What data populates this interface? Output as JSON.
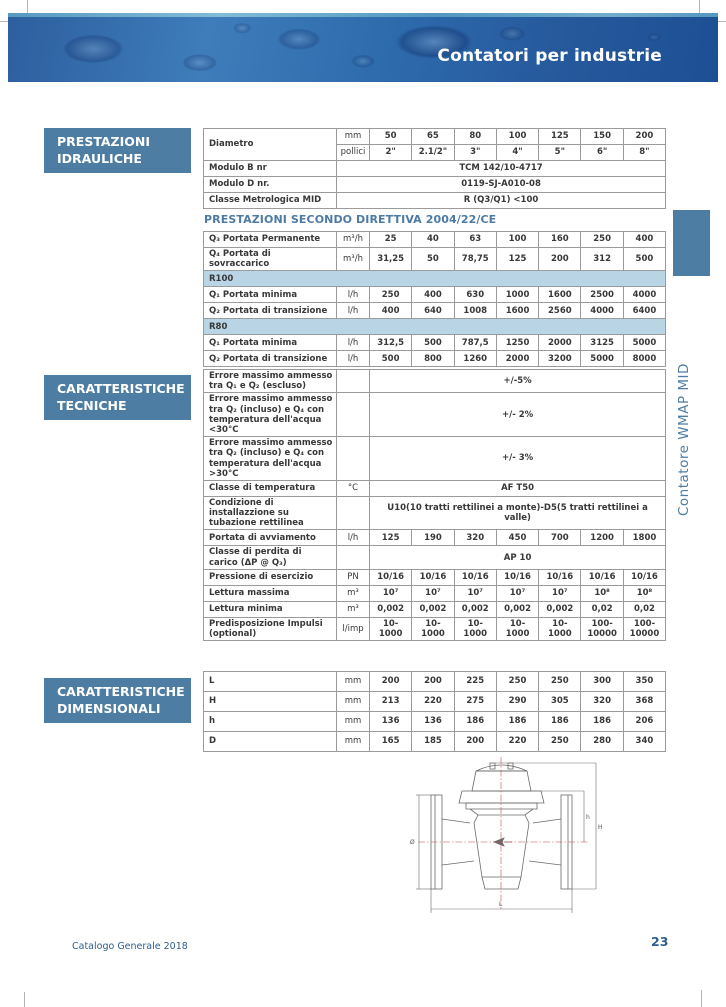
{
  "header": {
    "title": "Contatori per industrie"
  },
  "side_tab": {
    "label": "Contatore WMAP MID"
  },
  "colors": {
    "accent_blue": "#4e7da4",
    "row_highlight": "#b9d5e5",
    "header_band_blue": "#2e6cae",
    "footer_text_blue": "#2e5f8c"
  },
  "section_labels": {
    "hydraulic": "PRESTAZIONI IDRAULICHE",
    "technical": "CARATTERISTICHE TECNICHE",
    "dimensional": "CARATTERISTICHE DIMENSIONALI"
  },
  "directive_heading": "PRESTAZIONI SECONDO DIRETTIVA 2004/22/CE",
  "table1": {
    "rows": [
      {
        "type": "diametro",
        "label": "Diametro",
        "sub": [
          {
            "unit": "mm",
            "values": [
              "50",
              "65",
              "80",
              "100",
              "125",
              "150",
              "200"
            ]
          },
          {
            "unit": "pollici",
            "values": [
              "2\"",
              "2.1/2\"",
              "3\"",
              "4\"",
              "5\"",
              "6\"",
              "8\""
            ]
          }
        ]
      },
      {
        "type": "span8",
        "label": "Modulo B nr",
        "value": "TCM 142/10-4717"
      },
      {
        "type": "span8",
        "label": "Modulo D nr.",
        "value": "0119-SJ-A010-08"
      },
      {
        "type": "span8",
        "label": "Classe Metrologica  MID",
        "value": "R (Q3/Q1) <100"
      }
    ]
  },
  "table2": {
    "rows": [
      {
        "type": "values",
        "label": "Q₃ Portata Permanente",
        "unit": "m³/h",
        "values": [
          "25",
          "40",
          "63",
          "100",
          "160",
          "250",
          "400"
        ]
      },
      {
        "type": "values",
        "label": "Q₄ Portata di sovraccarico",
        "unit": "m³/h",
        "values": [
          "31,25",
          "50",
          "78,75",
          "125",
          "200",
          "312",
          "500"
        ]
      },
      {
        "type": "highlight",
        "label": "R100"
      },
      {
        "type": "values",
        "label": "Q₁  Portata minima",
        "unit": "l/h",
        "values": [
          "250",
          "400",
          "630",
          "1000",
          "1600",
          "2500",
          "4000"
        ]
      },
      {
        "type": "values",
        "label": "Q₂  Portata di transizione",
        "unit": "l/h",
        "values": [
          "400",
          "640",
          "1008",
          "1600",
          "2560",
          "4000",
          "6400"
        ]
      },
      {
        "type": "highlight",
        "label": "R80"
      },
      {
        "type": "values",
        "label": "Q₁  Portata minima",
        "unit": "l/h",
        "values": [
          "312,5",
          "500",
          "787,5",
          "1250",
          "2000",
          "3125",
          "5000"
        ]
      },
      {
        "type": "values",
        "label": "Q₂  Portata di transizione",
        "unit": "l/h",
        "values": [
          "500",
          "800",
          "1260",
          "2000",
          "3200",
          "5000",
          "8000"
        ]
      }
    ]
  },
  "table3": {
    "rows": [
      {
        "type": "span7",
        "label": "Errore massimo ammesso tra Q₁ e Q₂ (escluso)",
        "unit": "",
        "value": "+/-5%"
      },
      {
        "type": "span7",
        "label": "Errore massimo ammesso tra Q₂ (incluso) e Q₄ con temperatura dell'acqua <30°C",
        "unit": "",
        "value": "+/- 2%"
      },
      {
        "type": "span7",
        "label": "Errore massimo ammesso tra Q₂ (incluso) e Q₄ con temperatura dell'acqua >30°C",
        "unit": "",
        "value": "+/- 3%"
      },
      {
        "type": "span7",
        "label": "Classe di temperatura",
        "unit": "°C",
        "value": "AF T50"
      },
      {
        "type": "span7",
        "label": "Condizione di installazzione su tubazione rettilinea",
        "unit": "",
        "value": "U10(10 tratti rettilinei a monte)-D5(5 tratti rettilinei a valle)"
      },
      {
        "type": "values",
        "label": "Portata di avviamento",
        "unit": "l/h",
        "values": [
          "125",
          "190",
          "320",
          "450",
          "700",
          "1200",
          "1800"
        ]
      },
      {
        "type": "span7",
        "label": "Classe di perdita di carico (ΔP @ Q₃)",
        "unit": "",
        "value": "AP 10"
      },
      {
        "type": "values",
        "label": "Pressione di esercizio",
        "unit": "PN",
        "values": [
          "10/16",
          "10/16",
          "10/16",
          "10/16",
          "10/16",
          "10/16",
          "10/16"
        ]
      },
      {
        "type": "values",
        "label": "Lettura massima",
        "unit": "m³",
        "values": [
          "10⁷",
          "10⁷",
          "10⁷",
          "10⁷",
          "10⁷",
          "10⁸",
          "10⁸"
        ]
      },
      {
        "type": "values",
        "label": "Lettura minima",
        "unit": "m³",
        "values": [
          "0,002",
          "0,002",
          "0,002",
          "0,002",
          "0,002",
          "0,02",
          "0,02"
        ]
      },
      {
        "type": "values",
        "label": "Predisposizione Impulsi (optional)",
        "unit": "l/imp",
        "values": [
          "10-1000",
          "10-1000",
          "10-1000",
          "10-1000",
          "10-1000",
          "100-10000",
          "100-10000"
        ]
      }
    ]
  },
  "table4": {
    "rows": [
      {
        "type": "values",
        "label": "L",
        "unit": "mm",
        "values": [
          "200",
          "200",
          "225",
          "250",
          "250",
          "300",
          "350"
        ]
      },
      {
        "type": "values",
        "label": "H",
        "unit": "mm",
        "values": [
          "213",
          "220",
          "275",
          "290",
          "305",
          "320",
          "368"
        ]
      },
      {
        "type": "values",
        "label": "h",
        "unit": "mm",
        "values": [
          "136",
          "136",
          "186",
          "186",
          "186",
          "186",
          "206"
        ]
      },
      {
        "type": "values",
        "label": "D",
        "unit": "mm",
        "values": [
          "165",
          "185",
          "200",
          "220",
          "250",
          "280",
          "340"
        ]
      }
    ]
  },
  "drawing": {
    "dim_bottom": "L",
    "dim_left": "Ø",
    "dim_right_inner": "h",
    "dim_right_outer": "H"
  },
  "footer": {
    "left": "Catalogo Generale 2018",
    "page_number": "23"
  }
}
